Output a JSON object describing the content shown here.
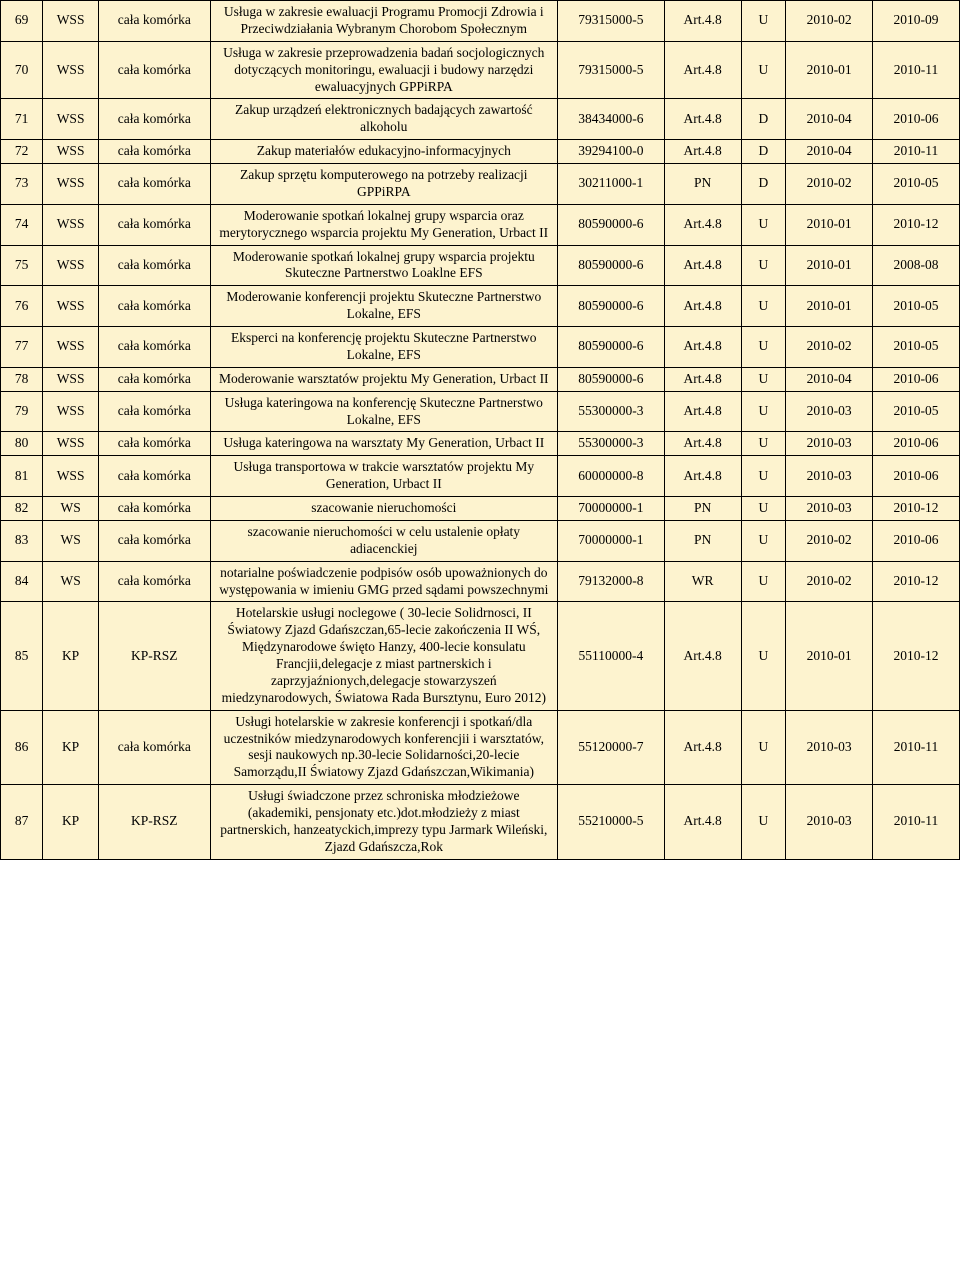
{
  "background_color": "#fdf3cf",
  "border_color": "#000000",
  "font_family": "Times New Roman",
  "font_size_pt": 10,
  "table": {
    "columns": [
      "num",
      "dept",
      "cell",
      "desc",
      "code",
      "col6",
      "col7",
      "col8",
      "col9"
    ],
    "rows": [
      [
        "69",
        "WSS",
        "cała komórka",
        "Usługa w zakresie ewaluacji Programu Promocji Zdrowia i Przeciwdziałania Wybranym Chorobom Społecznym",
        "79315000-5",
        "Art.4.8",
        "U",
        "2010-02",
        "2010-09"
      ],
      [
        "70",
        "WSS",
        "cała komórka",
        "Usługa w zakresie przeprowadzenia badań socjologicznych dotyczących monitoringu, ewaluacji i budowy narzędzi ewaluacyjnych GPPiRPA",
        "79315000-5",
        "Art.4.8",
        "U",
        "2010-01",
        "2010-11"
      ],
      [
        "71",
        "WSS",
        "cała komórka",
        "Zakup urządzeń elektronicznych badających zawartość alkoholu",
        "38434000-6",
        "Art.4.8",
        "D",
        "2010-04",
        "2010-06"
      ],
      [
        "72",
        "WSS",
        "cała komórka",
        "Zakup materiałów edukacyjno-informacyjnych",
        "39294100-0",
        "Art.4.8",
        "D",
        "2010-04",
        "2010-11"
      ],
      [
        "73",
        "WSS",
        "cała komórka",
        "Zakup sprzętu komputerowego na potrzeby realizacji GPPiRPA",
        "30211000-1",
        "PN",
        "D",
        "2010-02",
        "2010-05"
      ],
      [
        "74",
        "WSS",
        "cała komórka",
        "Moderowanie spotkań lokalnej grupy wsparcia oraz merytorycznego wsparcia projektu My Generation, Urbact II",
        "80590000-6",
        "Art.4.8",
        "U",
        "2010-01",
        "2010-12"
      ],
      [
        "75",
        "WSS",
        "cała komórka",
        "Moderowanie spotkań lokalnej grupy wsparcia projektu Skuteczne Partnerstwo Loaklne EFS",
        "80590000-6",
        "Art.4.8",
        "U",
        "2010-01",
        "2008-08"
      ],
      [
        "76",
        "WSS",
        "cała komórka",
        "Moderowanie konferencji projektu Skuteczne Partnerstwo Lokalne, EFS",
        "80590000-6",
        "Art.4.8",
        "U",
        "2010-01",
        "2010-05"
      ],
      [
        "77",
        "WSS",
        "cała komórka",
        "Eksperci na konferencję projektu Skuteczne Partnerstwo Lokalne, EFS",
        "80590000-6",
        "Art.4.8",
        "U",
        "2010-02",
        "2010-05"
      ],
      [
        "78",
        "WSS",
        "cała komórka",
        "Moderowanie warsztatów projektu My Generation, Urbact II",
        "80590000-6",
        "Art.4.8",
        "U",
        "2010-04",
        "2010-06"
      ],
      [
        "79",
        "WSS",
        "cała komórka",
        "Usługa kateringowa na konferencję Skuteczne Partnerstwo Lokalne, EFS",
        "55300000-3",
        "Art.4.8",
        "U",
        "2010-03",
        "2010-05"
      ],
      [
        "80",
        "WSS",
        "cała komórka",
        "Usługa kateringowa na warsztaty My Generation, Urbact II",
        "55300000-3",
        "Art.4.8",
        "U",
        "2010-03",
        "2010-06"
      ],
      [
        "81",
        "WSS",
        "cała komórka",
        "Usługa transportowa w trakcie warsztatów projektu My Generation, Urbact II",
        "60000000-8",
        "Art.4.8",
        "U",
        "2010-03",
        "2010-06"
      ],
      [
        "82",
        "WS",
        "cała komórka",
        "szacowanie nieruchomości",
        "70000000-1",
        "PN",
        "U",
        "2010-03",
        "2010-12"
      ],
      [
        "83",
        "WS",
        "cała komórka",
        "szacowanie nieruchomości w celu ustalenie opłaty adiacenckiej",
        "70000000-1",
        "PN",
        "U",
        "2010-02",
        "2010-06"
      ],
      [
        "84",
        "WS",
        "cała komórka",
        "notarialne poświadczenie podpisów osób upoważnionych do występowania w imieniu GMG przed sądami powszechnymi",
        "79132000-8",
        "WR",
        "U",
        "2010-02",
        "2010-12"
      ],
      [
        "85",
        "KP",
        "KP-RSZ",
        "Hotelarskie usługi noclegowe ( 30-lecie Solidrnosci, II Światowy Zjazd Gdańszczan,65-lecie zakończenia II WŚ, Międzynarodowe święto Hanzy, 400-lecie konsulatu Francjii,delegacje z miast partnerskich i zaprzyjaźnionych,delegacje stowarzyszeń miedzynarodowych, Światowa Rada Bursztynu, Euro 2012)",
        "55110000-4",
        "Art.4.8",
        "U",
        "2010-01",
        "2010-12"
      ],
      [
        "86",
        "KP",
        "cała komórka",
        "Usługi hotelarskie w zakresie konferencji i spotkań/dla uczestników miedzynarodowych konferencjii i warsztatów, sesji naukowych np.30-lecie Solidarności,20-lecie Samorządu,II Światowy Zjazd Gdańszczan,Wikimania)",
        "55120000-7",
        "Art.4.8",
        "U",
        "2010-03",
        "2010-11"
      ],
      [
        "87",
        "KP",
        "KP-RSZ",
        "Usługi świadczone przez schroniska młodzieżowe (akademiki, pensjonaty etc.)dot.młodzieży z miast partnerskich, hanzeatyckich,imprezy typu Jarmark Wileński, Zjazd Gdańszcza,Rok",
        "55210000-5",
        "Art.4.8",
        "U",
        "2010-03",
        "2010-11"
      ]
    ]
  }
}
